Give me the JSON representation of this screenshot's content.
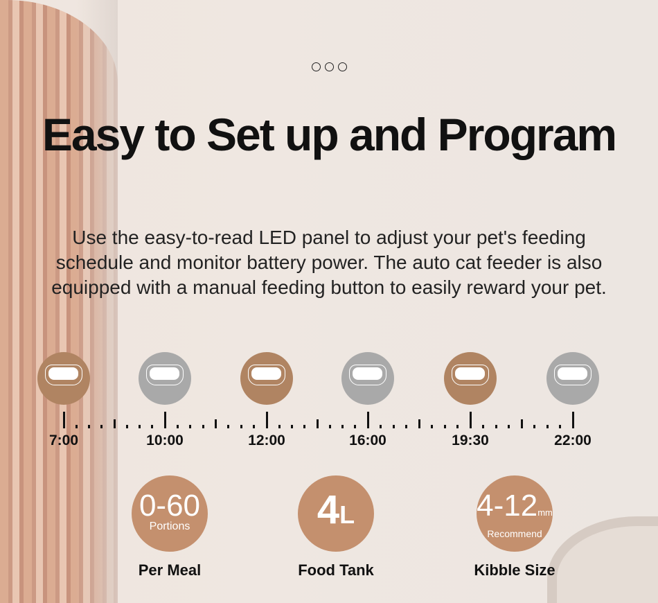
{
  "headline": "Easy to Set up and Program",
  "description": "Use the easy-to-read LED panel to adjust your pet's feeding schedule and monitor battery power. The auto cat feeder is also equipped with a manual feeding button to easily reward your pet.",
  "colors": {
    "active": "#b08462",
    "inactive": "#a9a9a9",
    "stat": "#c4906e"
  },
  "schedule": [
    {
      "time": "7:00",
      "active": true
    },
    {
      "time": "10:00",
      "active": false
    },
    {
      "time": "12:00",
      "active": true
    },
    {
      "time": "16:00",
      "active": false
    },
    {
      "time": "19:30",
      "active": true
    },
    {
      "time": "22:00",
      "active": false
    }
  ],
  "stats": [
    {
      "value": "0-60",
      "unit": "",
      "sub": "Portions",
      "label": "Per Meal"
    },
    {
      "value": "4",
      "unit": "L",
      "sub": "",
      "label": "Food Tank"
    },
    {
      "value": "4-12",
      "unit": "mm",
      "sub": "Recommend",
      "label": "Kibble Size"
    }
  ]
}
